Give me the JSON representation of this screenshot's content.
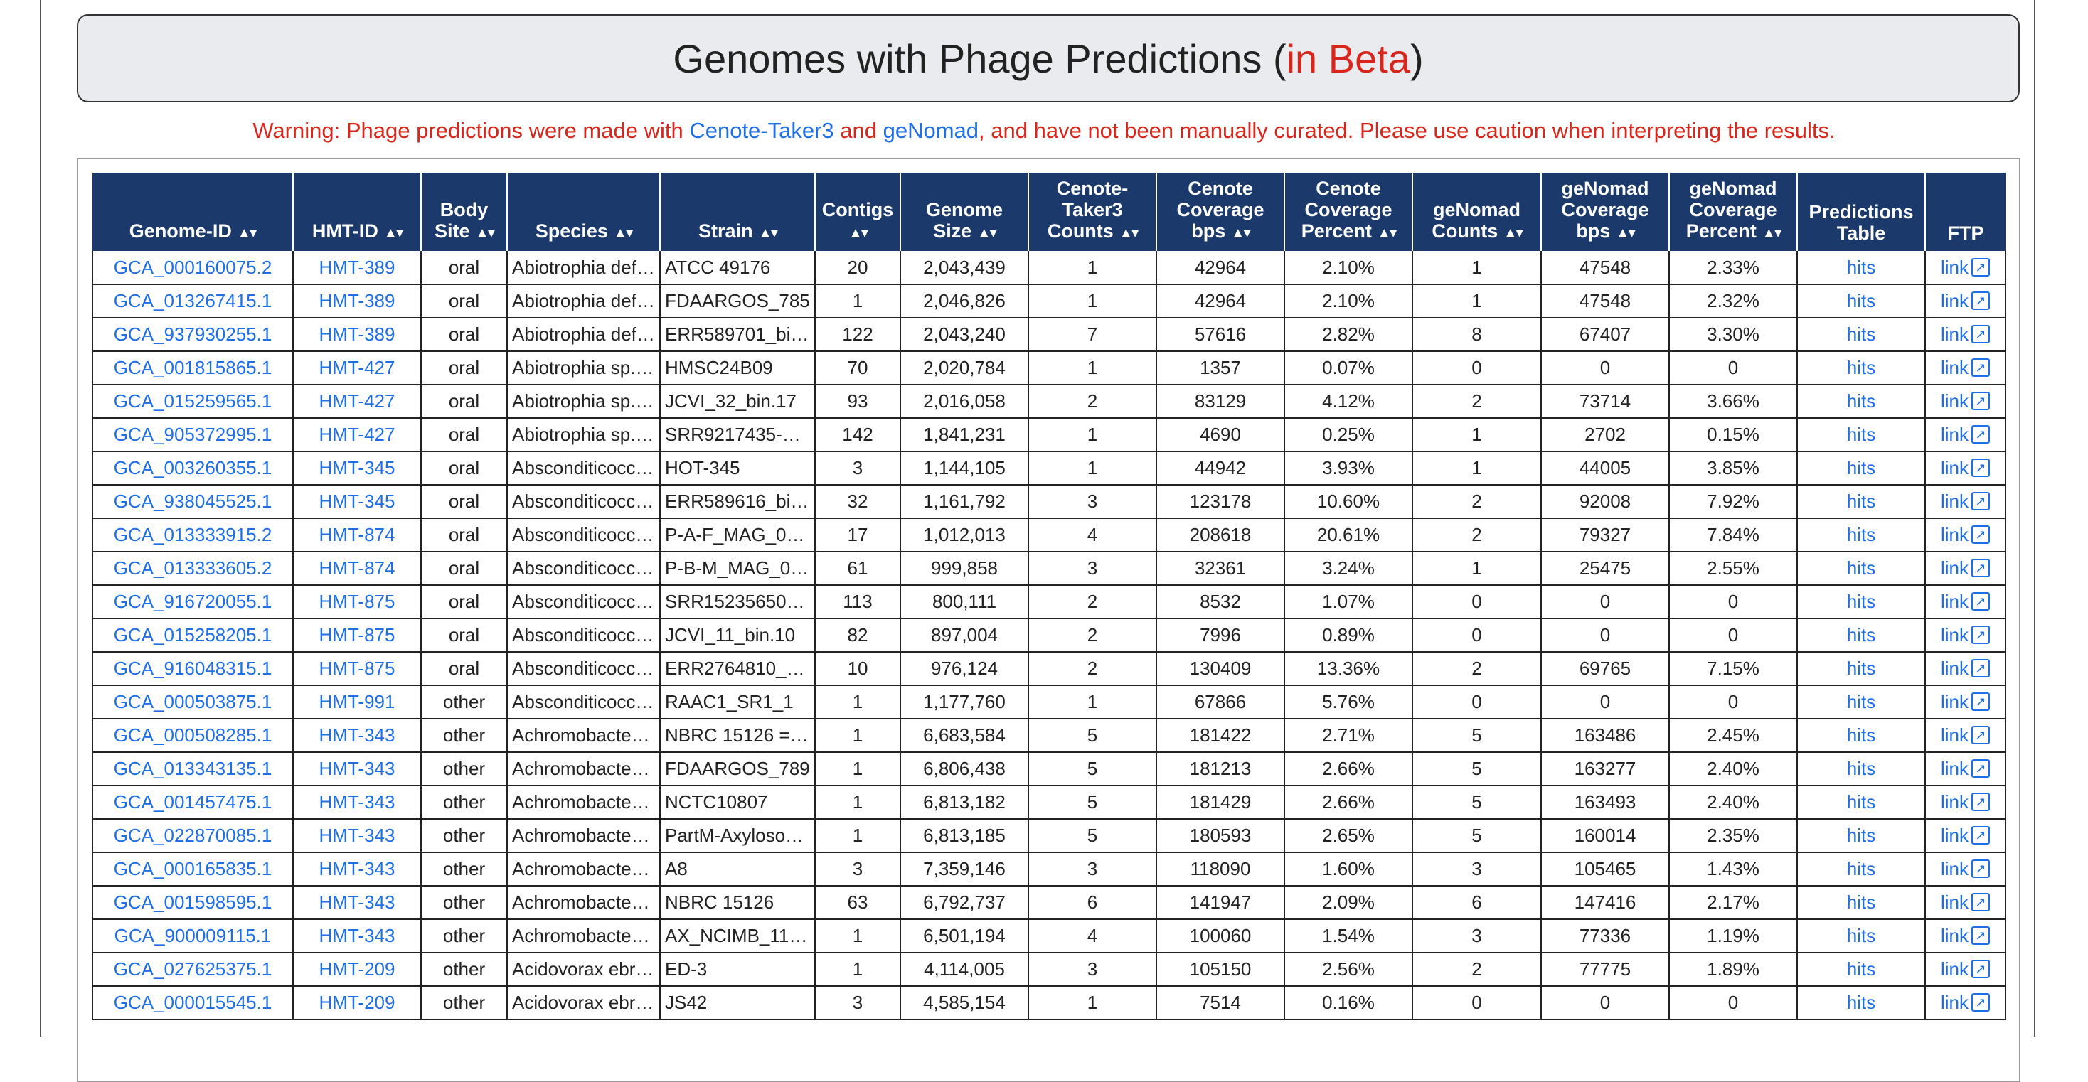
{
  "title": {
    "main": "Genomes with Phage Predictions",
    "open_paren": "(",
    "beta": "in Beta",
    "close_paren": ")"
  },
  "warning": {
    "prefix": "Warning: Phage predictions were made with ",
    "tool1": "Cenote-Taker3",
    "and": " and ",
    "tool2": "geNomad",
    "suffix": ", and have not been manually curated. Please use caution when interpreting the results."
  },
  "sort_glyph": "▲▾",
  "icons": {
    "external_link": "external-link-icon",
    "sort": "sort-arrows-icon"
  },
  "colors": {
    "header_bg": "#1b3a6b",
    "link": "#1e6ee6",
    "warning": "#d9261c",
    "title_box": "#e9ebee"
  },
  "columns": [
    {
      "line1": "Genome-ID",
      "line2": "",
      "sortable": true
    },
    {
      "line1": "HMT-ID",
      "line2": "",
      "sortable": true
    },
    {
      "line1": "Body",
      "line2": "Site",
      "sortable": true
    },
    {
      "line1": "Species",
      "line2": "",
      "sortable": true
    },
    {
      "line1": "Strain",
      "line2": "",
      "sortable": true
    },
    {
      "line1": "Contigs",
      "line2": "",
      "sortable": true
    },
    {
      "line1": "Genome",
      "line2": "Size",
      "sortable": true
    },
    {
      "line1": "Cenote-",
      "line2": "Taker3",
      "line3": "Counts",
      "sortable": true
    },
    {
      "line1": "Cenote",
      "line2": "Coverage",
      "line3": "bps",
      "sortable": true
    },
    {
      "line1": "Cenote",
      "line2": "Coverage",
      "line3": "Percent",
      "sortable": true
    },
    {
      "line1": "geNomad",
      "line2": "Counts",
      "sortable": true
    },
    {
      "line1": "geNomad",
      "line2": "Coverage",
      "line3": "bps",
      "sortable": true
    },
    {
      "line1": "geNomad",
      "line2": "Coverage",
      "line3": "Percent",
      "sortable": true
    },
    {
      "line1": "Predictions",
      "line2": "Table",
      "sortable": false
    },
    {
      "line1": "FTP",
      "line2": "",
      "sortable": false
    }
  ],
  "hits_label": "hits",
  "link_label": "link",
  "rows": [
    [
      "GCA_000160075.2",
      "HMT-389",
      "oral",
      "Abiotrophia def…",
      "ATCC 49176",
      "20",
      "2,043,439",
      "1",
      "42964",
      "2.10%",
      "1",
      "47548",
      "2.33%"
    ],
    [
      "GCA_013267415.1",
      "HMT-389",
      "oral",
      "Abiotrophia def…",
      "FDAARGOS_785",
      "1",
      "2,046,826",
      "1",
      "42964",
      "2.10%",
      "1",
      "47548",
      "2.32%"
    ],
    [
      "GCA_937930255.1",
      "HMT-389",
      "oral",
      "Abiotrophia def…",
      "ERR589701_bi…",
      "122",
      "2,043,240",
      "7",
      "57616",
      "2.82%",
      "8",
      "67407",
      "3.30%"
    ],
    [
      "GCA_001815865.1",
      "HMT-427",
      "oral",
      "Abiotrophia sp. …",
      "HMSC24B09",
      "70",
      "2,020,784",
      "1",
      "1357",
      "0.07%",
      "0",
      "0",
      "0"
    ],
    [
      "GCA_015259565.1",
      "HMT-427",
      "oral",
      "Abiotrophia sp. …",
      "JCVI_32_bin.17",
      "93",
      "2,016,058",
      "2",
      "83129",
      "4.12%",
      "2",
      "73714",
      "3.66%"
    ],
    [
      "GCA_905372995.1",
      "HMT-427",
      "oral",
      "Abiotrophia sp. …",
      "SRR9217435-…",
      "142",
      "1,841,231",
      "1",
      "4690",
      "0.25%",
      "1",
      "2702",
      "0.15%"
    ],
    [
      "GCA_003260355.1",
      "HMT-345",
      "oral",
      "Absconditicocc…",
      "HOT-345",
      "3",
      "1,144,105",
      "1",
      "44942",
      "3.93%",
      "1",
      "44005",
      "3.85%"
    ],
    [
      "GCA_938045525.1",
      "HMT-345",
      "oral",
      "Absconditicocc…",
      "ERR589616_bi…",
      "32",
      "1,161,792",
      "3",
      "123178",
      "10.60%",
      "2",
      "92008",
      "7.92%"
    ],
    [
      "GCA_013333915.2",
      "HMT-874",
      "oral",
      "Absconditicocc…",
      "P-A-F_MAG_0…",
      "17",
      "1,012,013",
      "4",
      "208618",
      "20.61%",
      "2",
      "79327",
      "7.84%"
    ],
    [
      "GCA_013333605.2",
      "HMT-874",
      "oral",
      "Absconditicocc…",
      "P-B-M_MAG_0…",
      "61",
      "999,858",
      "3",
      "32361",
      "3.24%",
      "1",
      "25475",
      "2.55%"
    ],
    [
      "GCA_916720055.1",
      "HMT-875",
      "oral",
      "Absconditicocc…",
      "SRR15235650…",
      "113",
      "800,111",
      "2",
      "8532",
      "1.07%",
      "0",
      "0",
      "0"
    ],
    [
      "GCA_015258205.1",
      "HMT-875",
      "oral",
      "Absconditicocc…",
      "JCVI_11_bin.10",
      "82",
      "897,004",
      "2",
      "7996",
      "0.89%",
      "0",
      "0",
      "0"
    ],
    [
      "GCA_916048315.1",
      "HMT-875",
      "oral",
      "Absconditicocc…",
      "ERR2764810_…",
      "10",
      "976,124",
      "2",
      "130409",
      "13.36%",
      "2",
      "69765",
      "7.15%"
    ],
    [
      "GCA_000503875.1",
      "HMT-991",
      "other",
      "Absconditicocc…",
      "RAAC1_SR1_1",
      "1",
      "1,177,760",
      "1",
      "67866",
      "5.76%",
      "0",
      "0",
      "0"
    ],
    [
      "GCA_000508285.1",
      "HMT-343",
      "other",
      "Achromobacter…",
      "NBRC 15126 =…",
      "1",
      "6,683,584",
      "5",
      "181422",
      "2.71%",
      "5",
      "163486",
      "2.45%"
    ],
    [
      "GCA_013343135.1",
      "HMT-343",
      "other",
      "Achromobacter…",
      "FDAARGOS_789",
      "1",
      "6,806,438",
      "5",
      "181213",
      "2.66%",
      "5",
      "163277",
      "2.40%"
    ],
    [
      "GCA_001457475.1",
      "HMT-343",
      "other",
      "Achromobacter…",
      "NCTC10807",
      "1",
      "6,813,182",
      "5",
      "181429",
      "2.66%",
      "5",
      "163493",
      "2.40%"
    ],
    [
      "GCA_022870085.1",
      "HMT-343",
      "other",
      "Achromobacter…",
      "PartM-Axyloso…",
      "1",
      "6,813,185",
      "5",
      "180593",
      "2.65%",
      "5",
      "160014",
      "2.35%"
    ],
    [
      "GCA_000165835.1",
      "HMT-343",
      "other",
      "Achromobacter…",
      "A8",
      "3",
      "7,359,146",
      "3",
      "118090",
      "1.60%",
      "3",
      "105465",
      "1.43%"
    ],
    [
      "GCA_001598595.1",
      "HMT-343",
      "other",
      "Achromobacter…",
      "NBRC 15126",
      "63",
      "6,792,737",
      "6",
      "141947",
      "2.09%",
      "6",
      "147416",
      "2.17%"
    ],
    [
      "GCA_900009115.1",
      "HMT-343",
      "other",
      "Achromobacter…",
      "AX_NCIMB_11…",
      "1",
      "6,501,194",
      "4",
      "100060",
      "1.54%",
      "3",
      "77336",
      "1.19%"
    ],
    [
      "GCA_027625375.1",
      "HMT-209",
      "other",
      "Acidovorax ebr…",
      "ED-3",
      "1",
      "4,114,005",
      "3",
      "105150",
      "2.56%",
      "2",
      "77775",
      "1.89%"
    ],
    [
      "GCA_000015545.1",
      "HMT-209",
      "other",
      "Acidovorax ebr…",
      "JS42",
      "3",
      "4,585,154",
      "1",
      "7514",
      "0.16%",
      "0",
      "0",
      "0"
    ]
  ]
}
